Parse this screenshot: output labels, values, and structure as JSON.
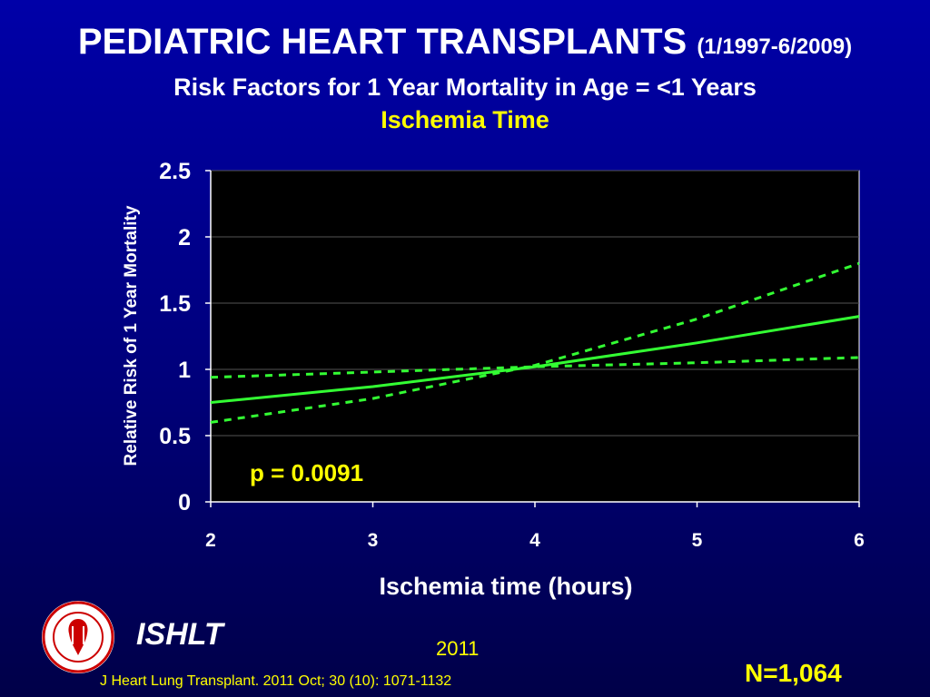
{
  "header": {
    "title": "PEDIATRIC HEART TRANSPLANTS",
    "title_dates": "(1/1997-6/2009)",
    "subtitle": "Risk Factors for 1 Year Mortality in Age = <1 Years",
    "subtitle2": "Ischemia Time"
  },
  "footer": {
    "org": "ISHLT",
    "year": "2011",
    "n": "N=1,064",
    "citation": "J Heart Lung Transplant. 2011 Oct; 30 (10): 1071-1132"
  },
  "colors": {
    "background_top": "#0000a8",
    "accent_yellow": "#ffff00",
    "line_green": "#33ff33",
    "plot_bg": "#000000"
  },
  "chart_data": {
    "type": "line",
    "xlabel": "Ischemia time (hours)",
    "ylabel": "Relative Risk of 1 Year Mortality",
    "xlim": [
      2,
      6
    ],
    "ylim": [
      0,
      2.5
    ],
    "xticks": [
      "2",
      "3",
      "4",
      "5",
      "6"
    ],
    "yticks": [
      "0",
      "0.5",
      "1",
      "1.5",
      "2",
      "2.5"
    ],
    "grid": true,
    "annotation": "p = 0.0091",
    "series": [
      {
        "style": "solid",
        "x": [
          2,
          3,
          4,
          5,
          6
        ],
        "y": [
          0.75,
          0.87,
          1.02,
          1.2,
          1.4
        ]
      },
      {
        "style": "dashed",
        "x": [
          2,
          3,
          4,
          5,
          6
        ],
        "y": [
          0.6,
          0.78,
          1.03,
          1.38,
          1.8
        ]
      },
      {
        "style": "dashed",
        "x": [
          2,
          3,
          4,
          5,
          6
        ],
        "y": [
          0.94,
          0.98,
          1.02,
          1.05,
          1.09
        ]
      }
    ]
  }
}
